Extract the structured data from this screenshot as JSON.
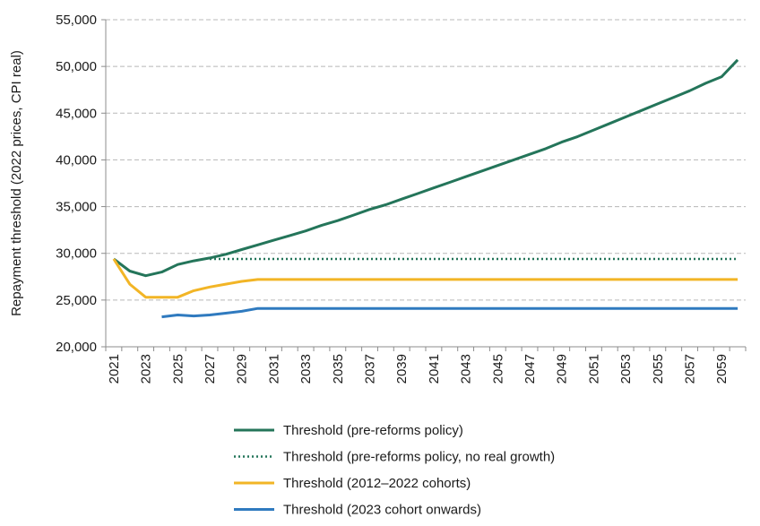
{
  "chart_data": {
    "type": "line",
    "title": "",
    "xlabel": "",
    "ylabel": "Repayment threshold (2022 prices, CPI real)",
    "ylim": [
      20000,
      55000
    ],
    "xlim": [
      2021,
      2060
    ],
    "y_ticks": [
      20000,
      25000,
      30000,
      35000,
      40000,
      45000,
      50000,
      55000
    ],
    "y_tick_labels": [
      "20,000",
      "25,000",
      "30,000",
      "35,000",
      "40,000",
      "45,000",
      "50,000",
      "55,000"
    ],
    "x_ticks": [
      2021,
      2023,
      2025,
      2027,
      2029,
      2031,
      2033,
      2035,
      2037,
      2039,
      2041,
      2043,
      2045,
      2047,
      2049,
      2051,
      2053,
      2055,
      2057,
      2059
    ],
    "x_tick_labels": [
      "2021",
      "2023",
      "2025",
      "2027",
      "2029",
      "2031",
      "2033",
      "2035",
      "2037",
      "2039",
      "2041",
      "2043",
      "2045",
      "2047",
      "2049",
      "2051",
      "2053",
      "2055",
      "2057",
      "2059"
    ],
    "grid": "horizontal dashed",
    "legend_position": "bottom",
    "series": [
      {
        "name": "Threshold (pre-reforms policy)",
        "color": "#24755a",
        "style": "solid",
        "x": [
          2021,
          2022,
          2023,
          2024,
          2025,
          2026,
          2027,
          2028,
          2029,
          2030,
          2031,
          2032,
          2033,
          2034,
          2035,
          2036,
          2037,
          2038,
          2039,
          2040,
          2041,
          2042,
          2043,
          2044,
          2045,
          2046,
          2047,
          2048,
          2049,
          2050,
          2051,
          2052,
          2053,
          2054,
          2055,
          2056,
          2057,
          2058,
          2059,
          2060
        ],
        "values": [
          29400,
          28100,
          27600,
          28000,
          28800,
          29200,
          29500,
          29900,
          30400,
          30900,
          31400,
          31900,
          32400,
          33000,
          33500,
          34100,
          34700,
          35200,
          35800,
          36400,
          37000,
          37600,
          38200,
          38800,
          39400,
          40000,
          40600,
          41200,
          41900,
          42500,
          43200,
          43900,
          44600,
          45300,
          46000,
          46700,
          47400,
          48200,
          48900,
          50700
        ]
      },
      {
        "name": "Threshold (pre-reforms policy, no real growth)",
        "color": "#24755a",
        "style": "dotted",
        "x": [
          2027,
          2060
        ],
        "values": [
          29400,
          29400
        ]
      },
      {
        "name": "Threshold (2012–2022 cohorts)",
        "color": "#f2b526",
        "style": "solid",
        "x": [
          2021,
          2022,
          2023,
          2024,
          2025,
          2026,
          2027,
          2028,
          2029,
          2030,
          2060
        ],
        "values": [
          29400,
          26700,
          25300,
          25300,
          25300,
          26000,
          26400,
          26700,
          27000,
          27200,
          27200
        ]
      },
      {
        "name": "Threshold (2023 cohort onwards)",
        "color": "#2f7abf",
        "style": "solid",
        "x": [
          2024,
          2025,
          2026,
          2027,
          2028,
          2029,
          2030,
          2060
        ],
        "values": [
          23200,
          23400,
          23300,
          23400,
          23600,
          23800,
          24100,
          24100
        ]
      }
    ]
  }
}
